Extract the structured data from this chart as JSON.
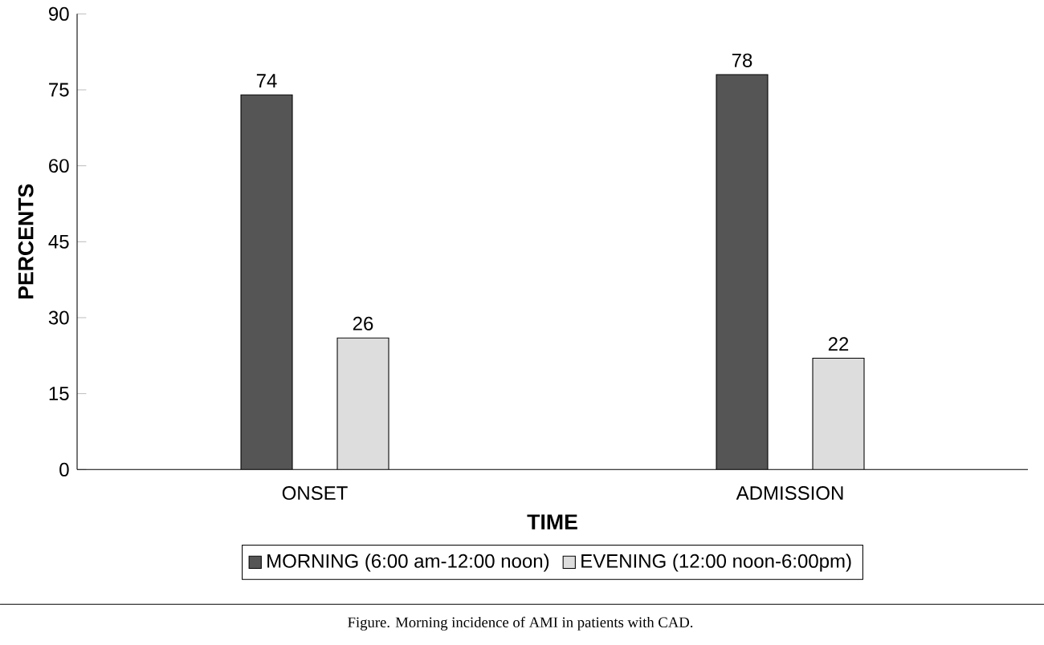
{
  "chart_data": {
    "type": "bar",
    "xlabel": "TIME",
    "ylabel": "PERCENTS",
    "categories": [
      "ONSET",
      "ADMISSION"
    ],
    "series": [
      {
        "name": "MORNING (6:00 am-12:00 noon)",
        "color": "#555555",
        "values": [
          74,
          78
        ]
      },
      {
        "name": "EVENING (12:00 noon-6:00pm)",
        "color": "#dddddd",
        "values": [
          26,
          22
        ]
      }
    ],
    "ylim": [
      0,
      90
    ],
    "yticks": [
      0,
      15,
      30,
      45,
      60,
      75,
      90
    ],
    "data_labels": true,
    "grid": false,
    "legend": "bottom",
    "annotations": [
      "Figure. Morning incidence of AMI in patients with CAD."
    ]
  }
}
